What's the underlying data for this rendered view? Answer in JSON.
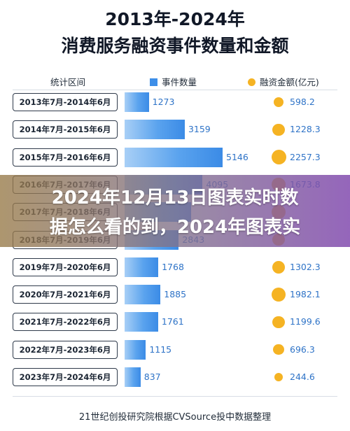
{
  "title_line1": "2013年-2024年",
  "title_line2": "消费服务融资事件数量和金额",
  "header": {
    "range": "统计区间",
    "count": "事件数量",
    "amount": "融资金额(亿元)"
  },
  "colors": {
    "bar": "#3d8ee8",
    "circle": "#f5b323",
    "value_text": "#2e73c7"
  },
  "chart_data": {
    "type": "bar",
    "categories": [
      "2013年7月-2014年6月",
      "2014年7月-2015年6月",
      "2015年7月-2016年6月",
      "2016年7月-2017年6月",
      "2017年7月-2018年6月",
      "2018年7月-2019年6月",
      "2019年7月-2020年6月",
      "2020年7月-2021年6月",
      "2021年7月-2022年6月",
      "2022年7月-2023年6月",
      "2023年7月-2024年6月"
    ],
    "series": [
      {
        "name": "事件数量",
        "values": [
          1273,
          3159,
          5146,
          4095,
          3500,
          2843,
          1768,
          1885,
          1761,
          1115,
          837
        ]
      },
      {
        "name": "融资金额(亿元)",
        "values": [
          598.2,
          1228.3,
          2257.3,
          1673.8,
          1900.0,
          1100.0,
          1302.3,
          1982.1,
          1199.6,
          696.3,
          244.6
        ]
      }
    ],
    "visible_labels": {
      "count": [
        "1273",
        "3159",
        "5146",
        "4095",
        "",
        "2843",
        "1768",
        "1885",
        "1761",
        "1115",
        "837"
      ],
      "amount": [
        "598.2",
        "1228.3",
        "2257.3",
        "1673.8",
        "",
        "",
        "1302.3",
        "1982.1",
        "1199.6",
        "696.3",
        "244.6"
      ]
    }
  },
  "overlay": {
    "line1": "2024年12月13日图表实时数",
    "line2": "据怎么看的到，2024年图表实"
  },
  "footer": "21世纪创投研究院根据CVSource投中数据整理"
}
